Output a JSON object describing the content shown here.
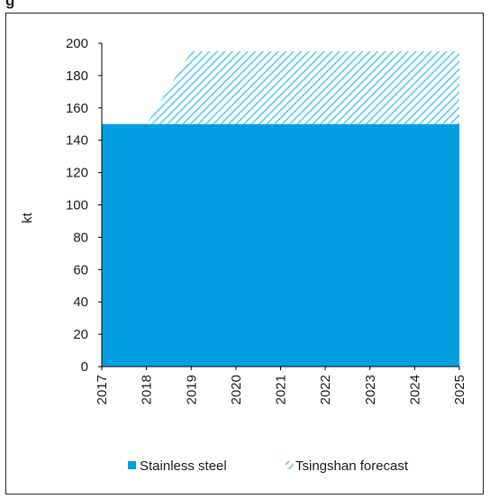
{
  "figure": {
    "title": "g"
  },
  "chart_data": {
    "type": "area",
    "x": [
      "2017",
      "2018",
      "2019",
      "2020",
      "2021",
      "2022",
      "2023",
      "2024",
      "2025"
    ],
    "ylabel": "kt",
    "ylim": [
      0,
      200
    ],
    "yticks": [
      0,
      20,
      40,
      60,
      80,
      100,
      120,
      140,
      160,
      180,
      200
    ],
    "grid": false,
    "legend_position": "bottom",
    "series": [
      {
        "name": "Stainless steel",
        "values": [
          150,
          150,
          150,
          150,
          150,
          150,
          150,
          150,
          150
        ],
        "color": "#00a0e0",
        "style": "solid"
      },
      {
        "name": "Tsingshan forecast",
        "values": [
          null,
          150,
          195,
          195,
          195,
          195,
          195,
          195,
          195
        ],
        "color": "#7fd0f0",
        "style": "hatched"
      }
    ]
  }
}
